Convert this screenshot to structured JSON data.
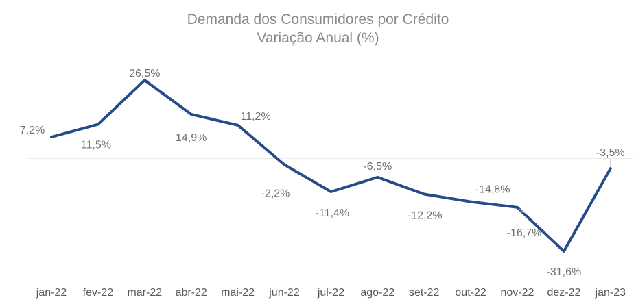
{
  "chart_data": {
    "type": "line",
    "title": "Demanda dos Consumidores por Crédito",
    "subtitle": "Variação Anual (%)",
    "xlabel": "",
    "ylabel": "",
    "categories": [
      "jan-22",
      "fev-22",
      "mar-22",
      "abr-22",
      "mai-22",
      "jun-22",
      "jul-22",
      "ago-22",
      "set-22",
      "out-22",
      "nov-22",
      "dez-22",
      "jan-23"
    ],
    "series": [
      {
        "name": "Variação Anual (%)",
        "values": [
          7.2,
          11.5,
          26.5,
          14.9,
          11.2,
          -2.2,
          -11.4,
          -6.5,
          -12.2,
          -14.8,
          -16.7,
          -31.6,
          -3.5
        ],
        "labels": [
          "7,2%",
          "11,5%",
          "26,5%",
          "14,9%",
          "11,2%",
          "-2,2%",
          "-11,4%",
          "-6,5%",
          "-12,2%",
          "-14,8%",
          "-16,7%",
          "-31,6%",
          "-3,5%"
        ]
      }
    ],
    "ylim": [
      -38,
      34
    ],
    "grid": false,
    "zero_line": true,
    "colors": {
      "line": "#254C8A",
      "zero_line": "#d9d9d9",
      "title": "#8a8a8a",
      "labels": "#6f6f6f",
      "ticks": "#595959"
    }
  }
}
